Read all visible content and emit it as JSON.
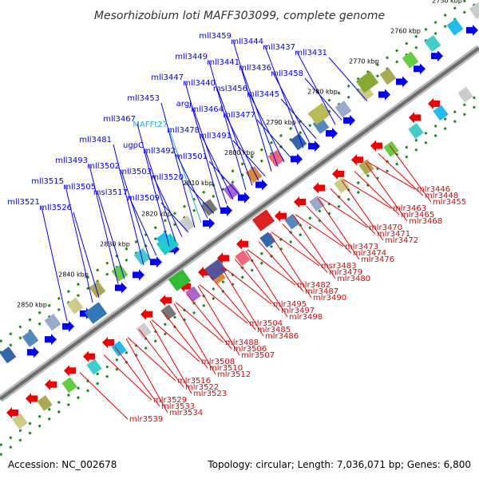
{
  "title": "Mesorhizobium loti MAFF303099, complete genome",
  "footer": {
    "accession": "Accession: NC_002678",
    "topology": "Topology: circular; Length: 7,036,071 bp; Genes: 6,800"
  },
  "scale_ticks": [
    "2750 kbp",
    "2760 kbp",
    "2770 kbp",
    "2780 kbp",
    "2790 kbp",
    "2800 kbp",
    "2810 kbp",
    "2820 kbp",
    "2830 kbp",
    "2840 kbp",
    "2850 kbp"
  ],
  "colors": {
    "backbone": "#888888",
    "upper_strand_genes": "#0000ee",
    "lower_strand_genes": "#ee0000",
    "rna_label": "#22aadd",
    "scale_dots": "#228822"
  },
  "upper_labels": [
    "mll3459",
    "mll3444",
    "mll3437",
    "mll3431",
    "mll3449",
    "mll3441",
    "mll3436",
    "mll3458",
    "mll3447",
    "mll3440",
    "msl3456",
    "mll3445",
    "mll3453",
    "argJ",
    "mll3464",
    "mll3477",
    "mll3467",
    "MAFFt27",
    "mll3478",
    "mll3491",
    "mll3481",
    "ugpC",
    "mll3492",
    "mll3501",
    "mll3493",
    "mll3502",
    "mll3503",
    "mll3520",
    "mll3515",
    "mll3505",
    "msl3517",
    "mll3509",
    "mll3521",
    "mll3526"
  ],
  "lower_labels": [
    "mlr3446",
    "mlr3448",
    "mlr3455",
    "mlr3463",
    "mlr3465",
    "mlr3468",
    "mlr3470",
    "mlr3471",
    "mlr3472",
    "mlr3473",
    "mlr3474",
    "mlr3476",
    "msr3483",
    "mlr3479",
    "mlr3480",
    "mlr3482",
    "mlr3487",
    "mlr3490",
    "mlr3495",
    "mlr3497",
    "mlr3498",
    "mlr3504",
    "mlr3485",
    "mlr3486",
    "mlr3488",
    "mlr3506",
    "mlr3507",
    "mlr3508",
    "mlr3510",
    "mlr3512",
    "mlr3516",
    "mlr3522",
    "mlr3523",
    "mlr3529",
    "mlr3533",
    "mlr3534",
    "mlr3539"
  ]
}
